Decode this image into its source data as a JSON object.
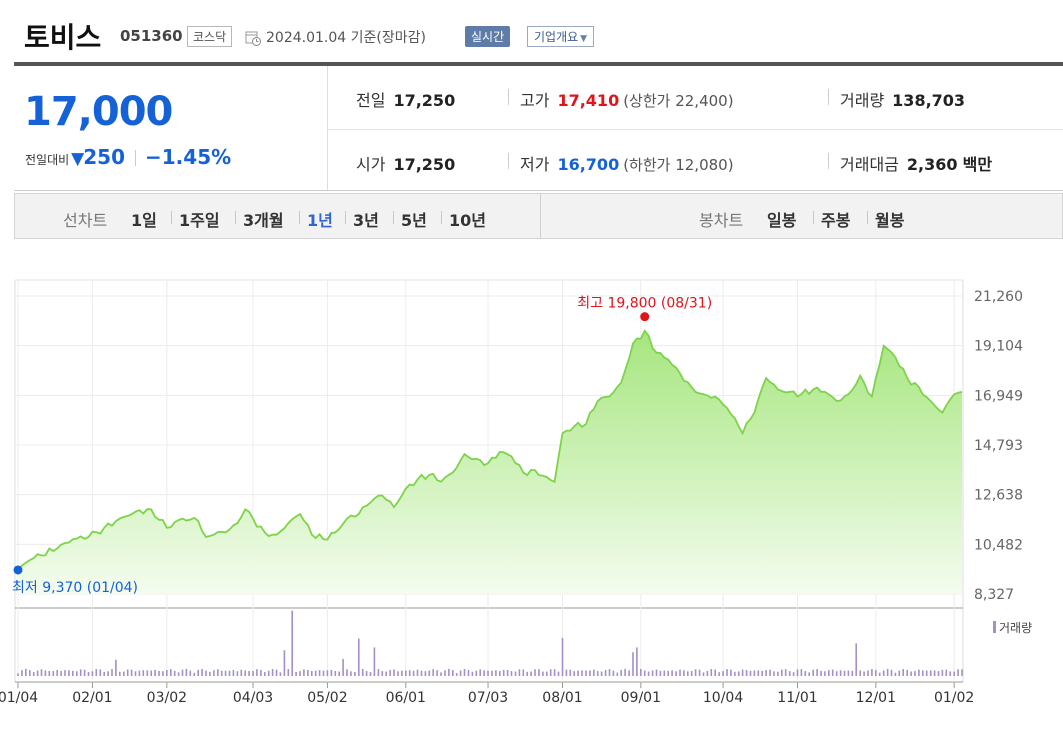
{
  "header": {
    "name": "토비스",
    "code": "051360",
    "market": "코스닥",
    "as_of": "2024.01.04 기준(장마감)",
    "realtime_label": "실시간",
    "overview_label": "기업개요"
  },
  "price": {
    "current": "17,000",
    "change_label": "전일대비",
    "change_arrow": "▼",
    "change_amount": "250",
    "change_pct": "−1.45%"
  },
  "quotes": {
    "prev_close_label": "전일",
    "prev_close": "17,250",
    "high_label": "고가",
    "high": "17,410",
    "upper_limit": "(상한가 22,400)",
    "volume_label": "거래량",
    "volume": "138,703",
    "open_label": "시가",
    "open": "17,250",
    "low_label": "저가",
    "low": "16,700",
    "lower_limit": "(하한가 12,080)",
    "value_label": "거래대금",
    "value": "2,360",
    "value_unit": "백만"
  },
  "tabs": {
    "line_chart_label": "선차트",
    "line_periods": [
      "1일",
      "1주일",
      "3개월",
      "1년",
      "3년",
      "5년",
      "10년"
    ],
    "selected_line": "1년",
    "candle_chart_label": "봉차트",
    "candle_periods": [
      "일봉",
      "주봉",
      "월봉"
    ]
  },
  "colors": {
    "line": "#7ed34a",
    "fill_top": "#a6e67f",
    "fill_bottom": "#f4fcee",
    "volume": "#a48fc9",
    "up": "#e0141b",
    "down": "#1561d8"
  },
  "chart_data": {
    "type": "area",
    "y_ticks": [
      "21,260",
      "19,104",
      "16,949",
      "14,793",
      "12,638",
      "10,482",
      "8,327"
    ],
    "ylim": [
      8327,
      21260
    ],
    "x_tick_labels": [
      "01/04",
      "02/01",
      "03/02",
      "04/03",
      "05/02",
      "06/01",
      "07/03",
      "08/01",
      "09/01",
      "10/04",
      "11/01",
      "12/01",
      "01/02"
    ],
    "x_tick_index": [
      0,
      19,
      38,
      60,
      79,
      99,
      120,
      139,
      159,
      180,
      199,
      219,
      239
    ],
    "high_annotation": "최고 19,800 (08/31)",
    "high_index": 160,
    "high_value": 19800,
    "low_annotation": "최저 9,370 (01/04)",
    "low_index": 0,
    "low_value": 9370,
    "volume_legend": "거래량",
    "anchors": [
      [
        0,
        9370
      ],
      [
        3,
        9800
      ],
      [
        6,
        10000
      ],
      [
        10,
        10300
      ],
      [
        14,
        10700
      ],
      [
        18,
        10800
      ],
      [
        22,
        11200
      ],
      [
        26,
        11600
      ],
      [
        30,
        11900
      ],
      [
        34,
        12000
      ],
      [
        38,
        11200
      ],
      [
        42,
        11600
      ],
      [
        46,
        11500
      ],
      [
        48,
        10800
      ],
      [
        50,
        10900
      ],
      [
        53,
        11000
      ],
      [
        56,
        11400
      ],
      [
        58,
        12000
      ],
      [
        60,
        11600
      ],
      [
        63,
        11000
      ],
      [
        66,
        10900
      ],
      [
        69,
        11400
      ],
      [
        72,
        11800
      ],
      [
        75,
        10900
      ],
      [
        78,
        10700
      ],
      [
        81,
        11000
      ],
      [
        84,
        11600
      ],
      [
        87,
        11800
      ],
      [
        90,
        12300
      ],
      [
        93,
        12600
      ],
      [
        96,
        12100
      ],
      [
        99,
        12900
      ],
      [
        102,
        13300
      ],
      [
        105,
        13500
      ],
      [
        108,
        13200
      ],
      [
        111,
        13600
      ],
      [
        114,
        14400
      ],
      [
        117,
        14200
      ],
      [
        120,
        14000
      ],
      [
        123,
        14500
      ],
      [
        126,
        14300
      ],
      [
        129,
        13600
      ],
      [
        132,
        13700
      ],
      [
        135,
        13400
      ],
      [
        137,
        13200
      ],
      [
        139,
        15300
      ],
      [
        142,
        15600
      ],
      [
        145,
        15700
      ],
      [
        148,
        16700
      ],
      [
        151,
        16900
      ],
      [
        154,
        17500
      ],
      [
        157,
        19200
      ],
      [
        160,
        19750
      ],
      [
        163,
        18800
      ],
      [
        166,
        18500
      ],
      [
        169,
        17900
      ],
      [
        172,
        17300
      ],
      [
        175,
        17000
      ],
      [
        178,
        16900
      ],
      [
        181,
        16400
      ],
      [
        184,
        15600
      ],
      [
        185,
        15300
      ],
      [
        188,
        16200
      ],
      [
        191,
        17700
      ],
      [
        194,
        17200
      ],
      [
        197,
        17100
      ],
      [
        200,
        17000
      ],
      [
        203,
        17200
      ],
      [
        206,
        17100
      ],
      [
        209,
        16700
      ],
      [
        212,
        17000
      ],
      [
        215,
        17800
      ],
      [
        218,
        16900
      ],
      [
        221,
        19100
      ],
      [
        224,
        18600
      ],
      [
        227,
        17700
      ],
      [
        230,
        17300
      ],
      [
        233,
        16700
      ],
      [
        236,
        16200
      ],
      [
        239,
        17000
      ],
      [
        241,
        17100
      ]
    ],
    "volume_spikes": [
      [
        70,
        0.96
      ],
      [
        68,
        0.38
      ],
      [
        87,
        0.55
      ],
      [
        91,
        0.42
      ],
      [
        139,
        0.56
      ],
      [
        157,
        0.35
      ],
      [
        158,
        0.42
      ],
      [
        214,
        0.48
      ],
      [
        83,
        0.25
      ],
      [
        25,
        0.24
      ]
    ]
  }
}
